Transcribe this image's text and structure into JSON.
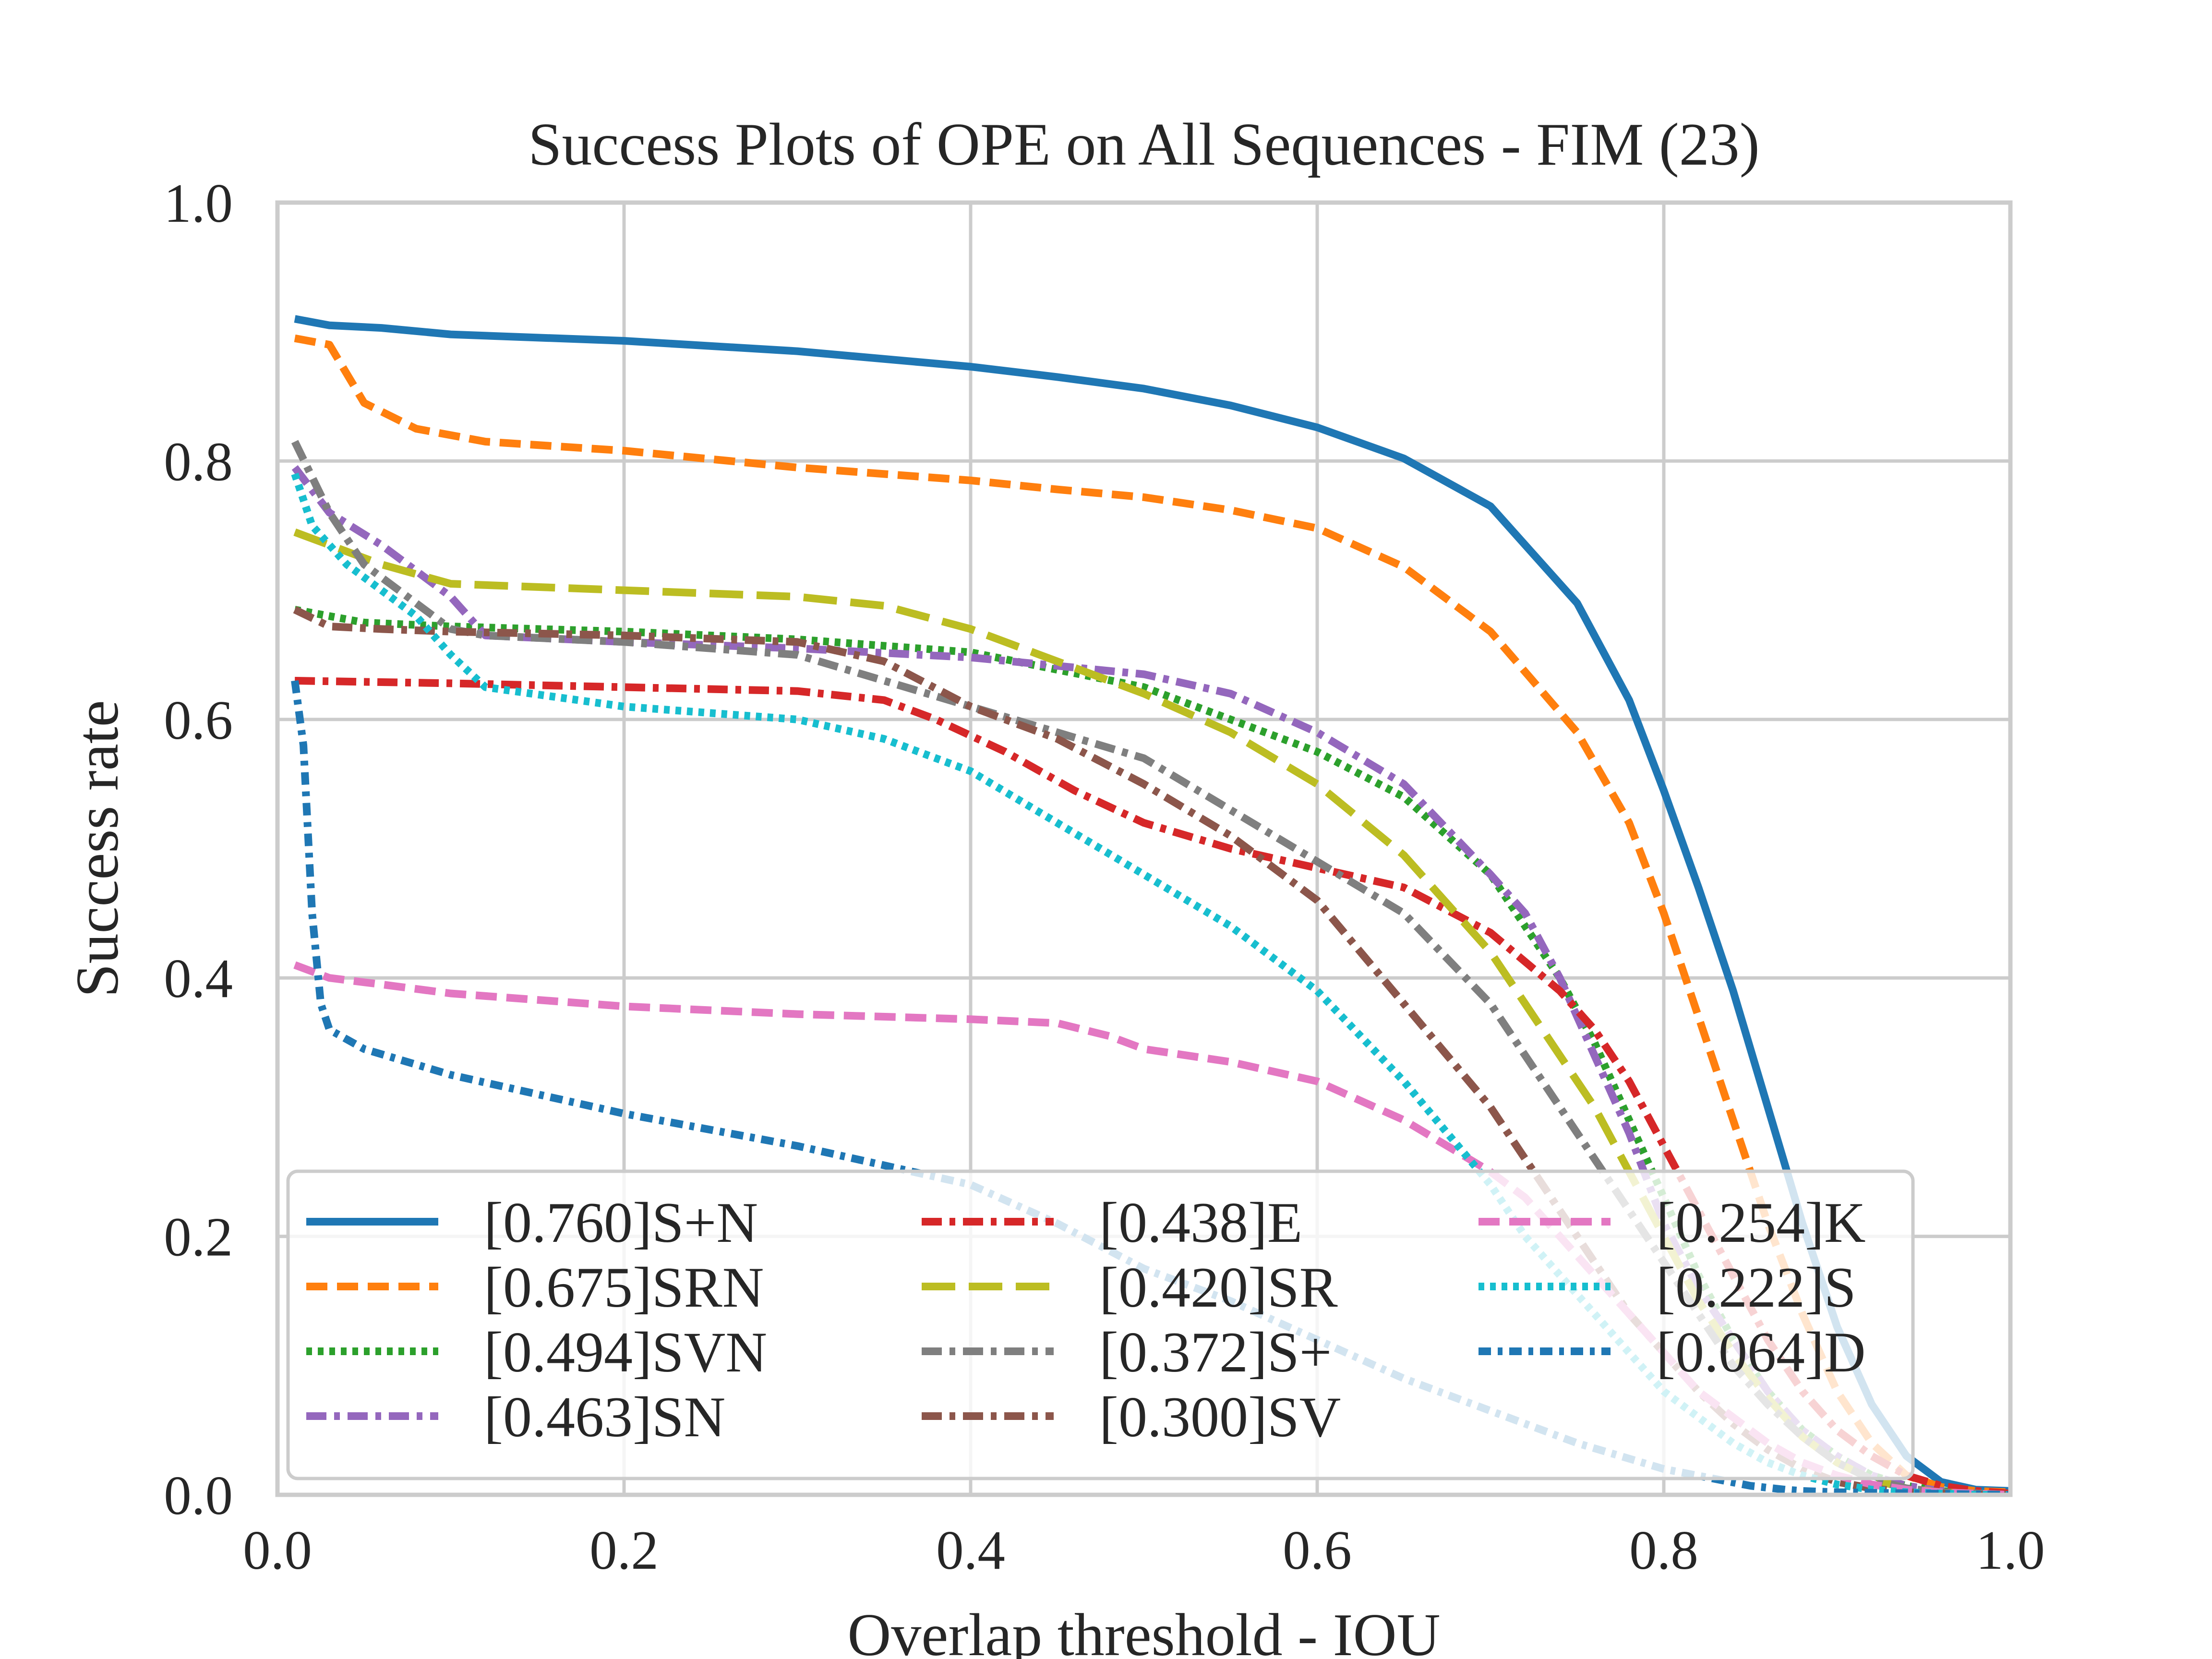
{
  "chart_data": {
    "type": "line",
    "title": "Success Plots of OPE on All Sequences - FIM (23)",
    "xlabel": "Overlap threshold - IOU",
    "ylabel": "Success rate",
    "xlim": [
      0.0,
      1.0
    ],
    "ylim": [
      0.0,
      1.0
    ],
    "xticks": [
      "0.0",
      "0.2",
      "0.4",
      "0.6",
      "0.8",
      "1.0"
    ],
    "yticks": [
      "0.0",
      "0.2",
      "0.4",
      "0.6",
      "0.8",
      "1.0"
    ],
    "grid": true,
    "legend_placement": "lower-center, 3 columns",
    "series": [
      {
        "name": "[0.760]S+N",
        "color": "#1f77b4",
        "dash": "solid",
        "x": [
          0.01,
          0.03,
          0.06,
          0.1,
          0.2,
          0.3,
          0.4,
          0.45,
          0.5,
          0.55,
          0.6,
          0.65,
          0.7,
          0.75,
          0.78,
          0.8,
          0.82,
          0.84,
          0.86,
          0.88,
          0.9,
          0.92,
          0.94,
          0.96,
          0.98,
          1.0
        ],
        "y": [
          0.91,
          0.905,
          0.903,
          0.898,
          0.893,
          0.885,
          0.873,
          0.865,
          0.856,
          0.843,
          0.826,
          0.802,
          0.765,
          0.69,
          0.615,
          0.545,
          0.47,
          0.39,
          0.3,
          0.21,
          0.13,
          0.07,
          0.03,
          0.01,
          0.004,
          0.003
        ]
      },
      {
        "name": "[0.675]SRN",
        "color": "#ff7f0e",
        "dash": "dashed",
        "x": [
          0.01,
          0.03,
          0.05,
          0.08,
          0.12,
          0.2,
          0.3,
          0.4,
          0.45,
          0.5,
          0.55,
          0.6,
          0.65,
          0.7,
          0.75,
          0.78,
          0.8,
          0.82,
          0.84,
          0.86,
          0.88,
          0.9,
          0.92,
          0.94,
          0.96,
          0.98,
          1.0
        ],
        "y": [
          0.895,
          0.89,
          0.845,
          0.825,
          0.815,
          0.808,
          0.795,
          0.785,
          0.778,
          0.772,
          0.762,
          0.748,
          0.718,
          0.668,
          0.59,
          0.52,
          0.45,
          0.37,
          0.29,
          0.21,
          0.14,
          0.08,
          0.04,
          0.015,
          0.006,
          0.003,
          0.002
        ]
      },
      {
        "name": "[0.494]SVN",
        "color": "#2ca02c",
        "dash": "dotted",
        "x": [
          0.01,
          0.05,
          0.1,
          0.2,
          0.3,
          0.4,
          0.5,
          0.55,
          0.6,
          0.65,
          0.7,
          0.72,
          0.74,
          0.76,
          0.78,
          0.8,
          0.82,
          0.84,
          0.86,
          0.88,
          0.9,
          0.92,
          0.94,
          0.96,
          0.98,
          1.0
        ],
        "y": [
          0.685,
          0.675,
          0.672,
          0.668,
          0.662,
          0.652,
          0.625,
          0.6,
          0.575,
          0.54,
          0.48,
          0.44,
          0.4,
          0.35,
          0.29,
          0.23,
          0.17,
          0.12,
          0.08,
          0.05,
          0.03,
          0.015,
          0.007,
          0.003,
          0.001,
          0.0
        ]
      },
      {
        "name": "[0.463]SN",
        "color": "#9467bd",
        "dash": "dashdot",
        "x": [
          0.01,
          0.03,
          0.06,
          0.08,
          0.1,
          0.12,
          0.2,
          0.3,
          0.4,
          0.5,
          0.55,
          0.6,
          0.65,
          0.7,
          0.72,
          0.74,
          0.76,
          0.78,
          0.8,
          0.82,
          0.84,
          0.86,
          0.88,
          0.9,
          0.92,
          0.94,
          0.96,
          0.98,
          1.0
        ],
        "y": [
          0.795,
          0.76,
          0.735,
          0.715,
          0.695,
          0.665,
          0.66,
          0.655,
          0.648,
          0.635,
          0.62,
          0.59,
          0.55,
          0.48,
          0.45,
          0.4,
          0.34,
          0.28,
          0.21,
          0.16,
          0.12,
          0.08,
          0.05,
          0.03,
          0.015,
          0.007,
          0.003,
          0.001,
          0.0
        ]
      },
      {
        "name": "[0.438]E",
        "color": "#d62728",
        "dash": "dashdot",
        "x": [
          0.01,
          0.1,
          0.2,
          0.3,
          0.35,
          0.38,
          0.42,
          0.46,
          0.5,
          0.55,
          0.6,
          0.65,
          0.7,
          0.74,
          0.76,
          0.78,
          0.8,
          0.82,
          0.84,
          0.86,
          0.88,
          0.9,
          0.92,
          0.94,
          0.96,
          0.98,
          1.0
        ],
        "y": [
          0.63,
          0.628,
          0.625,
          0.622,
          0.615,
          0.6,
          0.575,
          0.545,
          0.52,
          0.5,
          0.485,
          0.47,
          0.435,
          0.39,
          0.36,
          0.32,
          0.27,
          0.22,
          0.17,
          0.12,
          0.08,
          0.05,
          0.03,
          0.015,
          0.007,
          0.003,
          0.001
        ]
      },
      {
        "name": "[0.420]SR",
        "color": "#bcbd22",
        "dash": "longdash",
        "x": [
          0.01,
          0.03,
          0.06,
          0.1,
          0.2,
          0.3,
          0.35,
          0.4,
          0.45,
          0.5,
          0.55,
          0.6,
          0.65,
          0.7,
          0.72,
          0.74,
          0.76,
          0.78,
          0.8,
          0.82,
          0.84,
          0.86,
          0.88,
          0.9,
          0.92,
          0.94,
          0.96,
          0.98,
          1.0
        ],
        "y": [
          0.745,
          0.735,
          0.72,
          0.705,
          0.7,
          0.695,
          0.688,
          0.67,
          0.645,
          0.62,
          0.59,
          0.55,
          0.495,
          0.42,
          0.38,
          0.34,
          0.3,
          0.25,
          0.2,
          0.15,
          0.11,
          0.075,
          0.045,
          0.025,
          0.012,
          0.005,
          0.002,
          0.001,
          0.0
        ]
      },
      {
        "name": "[0.372]S+",
        "color": "#7f7f7f",
        "dash": "dashdot",
        "x": [
          0.01,
          0.03,
          0.05,
          0.08,
          0.1,
          0.12,
          0.2,
          0.3,
          0.35,
          0.4,
          0.45,
          0.5,
          0.55,
          0.6,
          0.65,
          0.7,
          0.72,
          0.74,
          0.76,
          0.78,
          0.8,
          0.82,
          0.84,
          0.86,
          0.88,
          0.9,
          0.92,
          0.94,
          0.96,
          0.98,
          1.0
        ],
        "y": [
          0.815,
          0.76,
          0.72,
          0.69,
          0.67,
          0.665,
          0.66,
          0.65,
          0.63,
          0.61,
          0.59,
          0.57,
          0.53,
          0.49,
          0.45,
          0.38,
          0.34,
          0.3,
          0.26,
          0.22,
          0.18,
          0.14,
          0.1,
          0.07,
          0.045,
          0.025,
          0.012,
          0.005,
          0.002,
          0.001,
          0.0
        ]
      },
      {
        "name": "[0.300]SV",
        "color": "#8c564b",
        "dash": "dashdot",
        "x": [
          0.01,
          0.03,
          0.06,
          0.1,
          0.2,
          0.3,
          0.35,
          0.4,
          0.45,
          0.5,
          0.55,
          0.6,
          0.65,
          0.7,
          0.72,
          0.74,
          0.76,
          0.78,
          0.8,
          0.82,
          0.84,
          0.86,
          0.88,
          0.9,
          0.92,
          0.94,
          0.96,
          0.98,
          1.0
        ],
        "y": [
          0.685,
          0.672,
          0.67,
          0.668,
          0.665,
          0.66,
          0.645,
          0.61,
          0.585,
          0.55,
          0.51,
          0.46,
          0.38,
          0.3,
          0.26,
          0.22,
          0.18,
          0.14,
          0.11,
          0.08,
          0.055,
          0.035,
          0.02,
          0.01,
          0.005,
          0.002,
          0.001,
          0.0,
          0.0
        ]
      },
      {
        "name": "[0.254]K",
        "color": "#e377c2",
        "dash": "dashed",
        "x": [
          0.01,
          0.03,
          0.06,
          0.1,
          0.2,
          0.3,
          0.4,
          0.45,
          0.48,
          0.5,
          0.55,
          0.6,
          0.65,
          0.7,
          0.72,
          0.74,
          0.76,
          0.78,
          0.8,
          0.82,
          0.84,
          0.86,
          0.88,
          0.9,
          0.92,
          0.94,
          0.96,
          0.98,
          1.0
        ],
        "y": [
          0.41,
          0.4,
          0.395,
          0.388,
          0.378,
          0.372,
          0.368,
          0.365,
          0.355,
          0.345,
          0.335,
          0.32,
          0.29,
          0.25,
          0.23,
          0.2,
          0.17,
          0.14,
          0.11,
          0.08,
          0.06,
          0.04,
          0.025,
          0.015,
          0.008,
          0.004,
          0.002,
          0.001,
          0.0
        ]
      },
      {
        "name": "[0.222]S",
        "color": "#17becf",
        "dash": "dotted",
        "x": [
          0.01,
          0.02,
          0.04,
          0.06,
          0.08,
          0.1,
          0.12,
          0.2,
          0.3,
          0.35,
          0.4,
          0.45,
          0.5,
          0.55,
          0.6,
          0.65,
          0.7,
          0.72,
          0.74,
          0.76,
          0.78,
          0.8,
          0.82,
          0.84,
          0.86,
          0.88,
          0.9,
          0.92,
          0.94,
          0.96,
          0.98,
          1.0
        ],
        "y": [
          0.79,
          0.75,
          0.72,
          0.7,
          0.68,
          0.65,
          0.625,
          0.61,
          0.6,
          0.585,
          0.56,
          0.52,
          0.48,
          0.44,
          0.39,
          0.32,
          0.24,
          0.2,
          0.17,
          0.14,
          0.11,
          0.08,
          0.06,
          0.04,
          0.025,
          0.015,
          0.008,
          0.004,
          0.002,
          0.001,
          0.0,
          0.0
        ]
      },
      {
        "name": "[0.064]D",
        "color": "#1f77b4",
        "dash": "dashdot-dense",
        "x": [
          0.01,
          0.015,
          0.02,
          0.025,
          0.03,
          0.05,
          0.1,
          0.15,
          0.2,
          0.3,
          0.4,
          0.45,
          0.5,
          0.55,
          0.6,
          0.65,
          0.7,
          0.75,
          0.8,
          0.85,
          0.87,
          0.88,
          0.9,
          0.95,
          1.0
        ],
        "y": [
          0.63,
          0.58,
          0.45,
          0.38,
          0.36,
          0.345,
          0.325,
          0.31,
          0.295,
          0.27,
          0.24,
          0.21,
          0.175,
          0.15,
          0.12,
          0.09,
          0.065,
          0.04,
          0.02,
          0.007,
          0.004,
          0.003,
          0.002,
          0.001,
          0.0
        ]
      }
    ]
  }
}
